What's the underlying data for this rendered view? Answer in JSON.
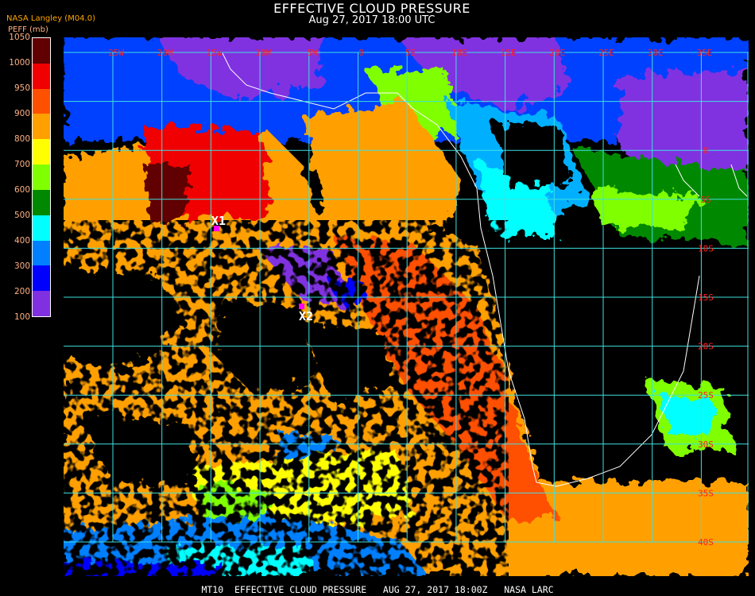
{
  "header": {
    "title": "EFFECTIVE CLOUD PRESSURE",
    "subtitle": "Aug 27, 2017 18:00 UTC",
    "source": "NASA Langley (M04.0)"
  },
  "legend": {
    "title": "PEFF (mb)",
    "labels": [
      "1050",
      "1000",
      "950",
      "900",
      "800",
      "700",
      "600",
      "500",
      "400",
      "300",
      "200",
      "100"
    ],
    "colors": [
      "#600000",
      "#f00000",
      "#ff5000",
      "#ffa000",
      "#ffff00",
      "#80ff00",
      "#008800",
      "#00ffff",
      "#0080ff",
      "#0000ff",
      "#8030e0"
    ]
  },
  "grid": {
    "line_color": "#40e0e0",
    "label_color": "#ff2020",
    "longitudes": [
      "25W",
      "20W",
      "15W",
      "10W",
      "5W",
      "0",
      "5E",
      "10E",
      "15E",
      "20E",
      "25E",
      "30E",
      "35E"
    ],
    "latitudes": [
      "0",
      "5S",
      "10S",
      "15S",
      "20S",
      "25S",
      "30S",
      "35S",
      "40S"
    ]
  },
  "markers": [
    {
      "label": "X1",
      "color": "#ff00ff"
    },
    {
      "label": "X2",
      "color": "#ff00ff"
    }
  ],
  "footer": "MT10  EFFECTIVE CLOUD PRESSURE   AUG 27, 2017 18:00Z   NASA LARC"
}
